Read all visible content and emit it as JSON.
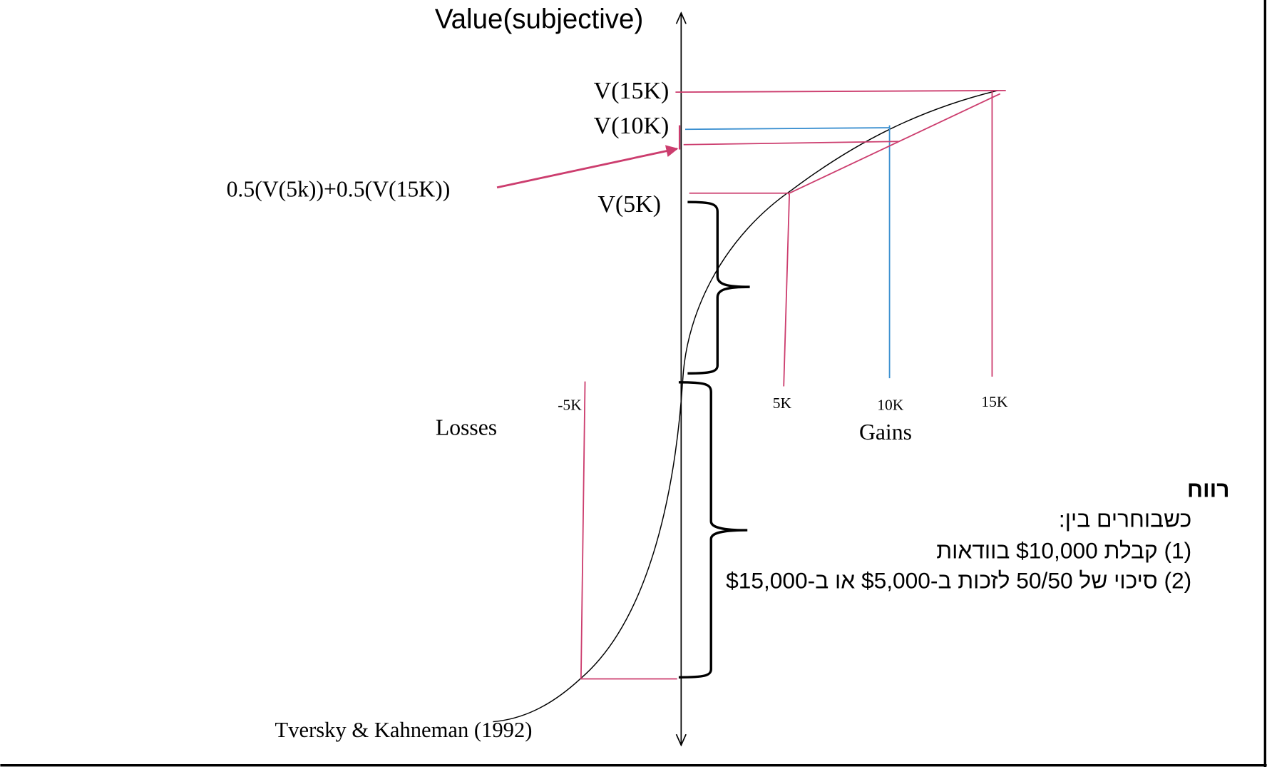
{
  "axis_title": "Value(subjective)",
  "value_labels": {
    "v15k": "V(15K)",
    "v10k": "V(10K)",
    "v5k": "V(5K)",
    "expected": "0.5(V(5k))+0.5(V(15K))"
  },
  "x_ticks": {
    "neg5k": "-5K",
    "k5": "5K",
    "k10": "10K",
    "k15": "15K"
  },
  "region_labels": {
    "losses": "Losses",
    "gains": "Gains"
  },
  "citation": "Tversky & Kahneman (1992)",
  "hebrew_text": {
    "title": "רווח",
    "line1": "כשבוחרים בין:",
    "line2": "(1) קבלת $10,000 בוודאות",
    "line3": "(2) סיכוי של 50/50 לזכות ב-$5,000 או ב-$15,000"
  },
  "colors": {
    "pink": "#cc3d6e",
    "blue": "#3a8fd0",
    "black": "#000000"
  }
}
